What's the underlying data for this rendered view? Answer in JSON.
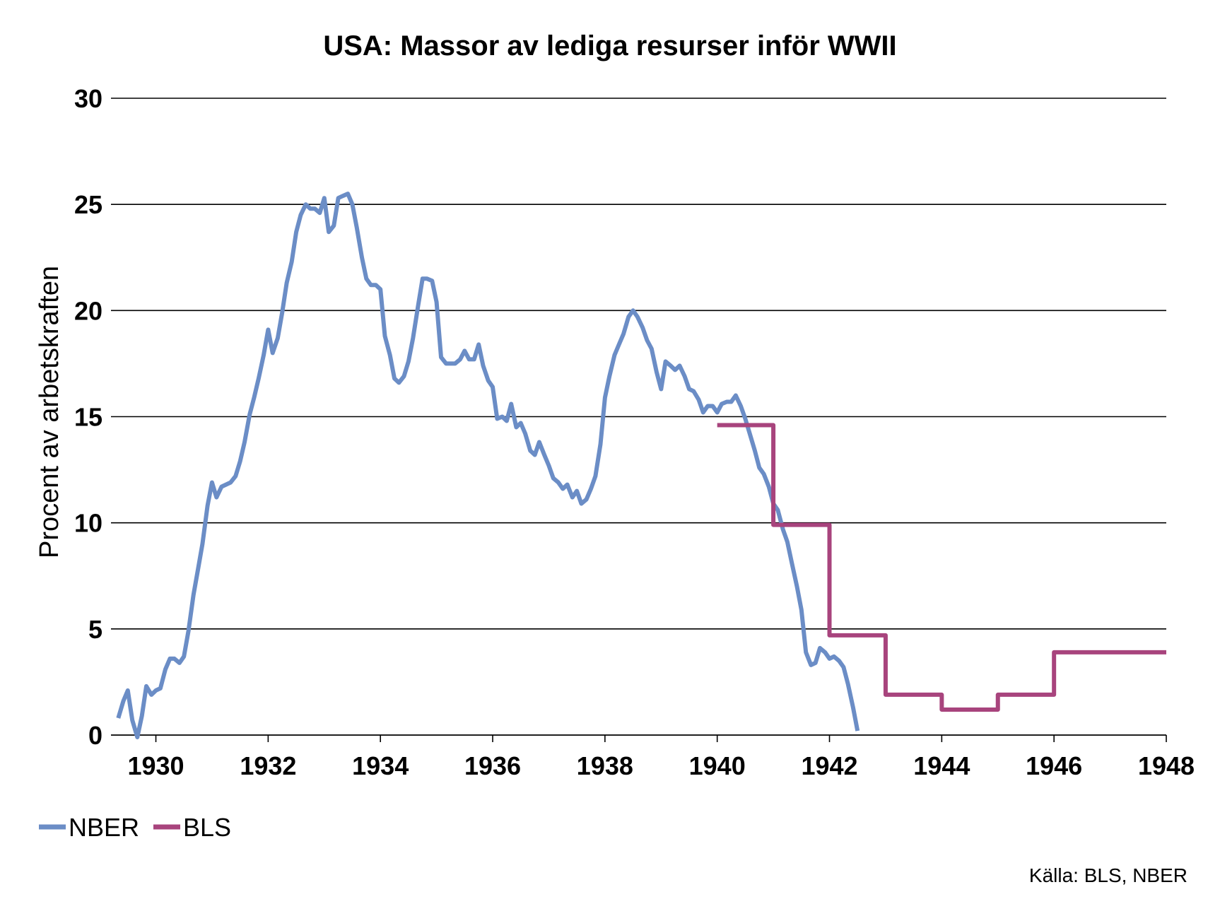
{
  "chart_data": {
    "type": "line",
    "title": "USA: Massor av lediga resurser inför WWII",
    "ylabel": "Procent av arbetskraften",
    "xlabel": "",
    "xlim": [
      1929.2,
      1948
    ],
    "ylim": [
      0,
      30
    ],
    "yticks": [
      "0",
      "5",
      "10",
      "15",
      "20",
      "25",
      "30"
    ],
    "xticks": [
      "1930",
      "1932",
      "1934",
      "1936",
      "1938",
      "1940",
      "1942",
      "1944",
      "1946",
      "1948"
    ],
    "grid": "horizontal",
    "legend_position": "bottom-left",
    "source": "Källa: BLS, NBER",
    "series": [
      {
        "name": "NBER",
        "color": "#6b8dc6",
        "x": [
          1929.33,
          1929.42,
          1929.5,
          1929.58,
          1929.67,
          1929.75,
          1929.83,
          1929.92,
          1930.0,
          1930.08,
          1930.17,
          1930.25,
          1930.33,
          1930.42,
          1930.5,
          1930.58,
          1930.67,
          1930.75,
          1930.83,
          1930.92,
          1931.0,
          1931.08,
          1931.17,
          1931.25,
          1931.33,
          1931.42,
          1931.5,
          1931.58,
          1931.67,
          1931.75,
          1931.83,
          1931.92,
          1932.0,
          1932.08,
          1932.17,
          1932.25,
          1932.33,
          1932.42,
          1932.5,
          1932.58,
          1932.67,
          1932.75,
          1932.83,
          1932.92,
          1933.0,
          1933.08,
          1933.17,
          1933.25,
          1933.33,
          1933.42,
          1933.5,
          1933.58,
          1933.67,
          1933.75,
          1933.83,
          1933.92,
          1934.0,
          1934.08,
          1934.17,
          1934.25,
          1934.33,
          1934.42,
          1934.5,
          1934.58,
          1934.67,
          1934.75,
          1934.83,
          1934.92,
          1935.0,
          1935.08,
          1935.17,
          1935.25,
          1935.33,
          1935.42,
          1935.5,
          1935.58,
          1935.67,
          1935.75,
          1935.83,
          1935.92,
          1936.0,
          1936.08,
          1936.17,
          1936.25,
          1936.33,
          1936.42,
          1936.5,
          1936.58,
          1936.67,
          1936.75,
          1936.83,
          1936.92,
          1937.0,
          1937.08,
          1937.17,
          1937.25,
          1937.33,
          1937.42,
          1937.5,
          1937.58,
          1937.67,
          1937.75,
          1937.83,
          1937.92,
          1938.0,
          1938.08,
          1938.17,
          1938.25,
          1938.33,
          1938.42,
          1938.5,
          1938.58,
          1938.67,
          1938.75,
          1938.83,
          1938.92,
          1939.0,
          1939.08,
          1939.17,
          1939.25,
          1939.33,
          1939.42,
          1939.5,
          1939.58,
          1939.67,
          1939.75,
          1939.83,
          1939.92,
          1940.0,
          1940.08,
          1940.17,
          1940.25,
          1940.33,
          1940.42,
          1940.5,
          1940.58,
          1940.67,
          1940.75,
          1940.83,
          1940.92,
          1941.0,
          1941.08,
          1941.17,
          1941.25,
          1941.33,
          1941.42,
          1941.5,
          1941.58,
          1941.67,
          1941.75,
          1941.83,
          1941.92,
          1942.0,
          1942.08,
          1942.17,
          1942.25,
          1942.33,
          1942.42,
          1942.5
        ],
        "values": [
          0.8,
          1.6,
          2.1,
          0.7,
          -0.1,
          0.9,
          2.3,
          1.9,
          2.1,
          2.2,
          3.1,
          3.6,
          3.6,
          3.4,
          3.7,
          4.9,
          6.6,
          7.8,
          9.0,
          10.8,
          11.9,
          11.2,
          11.7,
          11.8,
          11.9,
          12.2,
          12.9,
          13.8,
          15.1,
          15.9,
          16.8,
          17.9,
          19.1,
          18.0,
          18.7,
          19.9,
          21.3,
          22.3,
          23.7,
          24.5,
          25.0,
          24.8,
          24.8,
          24.6,
          25.3,
          23.7,
          24.0,
          25.3,
          25.4,
          25.5,
          25.0,
          23.9,
          22.5,
          21.5,
          21.2,
          21.2,
          21.0,
          18.8,
          17.9,
          16.8,
          16.6,
          16.9,
          17.6,
          18.7,
          20.2,
          21.5,
          21.5,
          21.4,
          20.4,
          17.8,
          17.5,
          17.5,
          17.5,
          17.7,
          18.1,
          17.7,
          17.7,
          18.4,
          17.4,
          16.7,
          16.4,
          14.9,
          15.0,
          14.8,
          15.6,
          14.5,
          14.7,
          14.2,
          13.4,
          13.2,
          13.8,
          13.2,
          12.7,
          12.1,
          11.9,
          11.6,
          11.8,
          11.2,
          11.5,
          10.9,
          11.1,
          11.6,
          12.2,
          13.7,
          15.9,
          16.9,
          17.9,
          18.4,
          18.9,
          19.7,
          20.0,
          19.7,
          19.2,
          18.6,
          18.2,
          17.1,
          16.3,
          17.6,
          17.4,
          17.2,
          17.4,
          16.9,
          16.3,
          16.2,
          15.8,
          15.2,
          15.5,
          15.5,
          15.2,
          15.6,
          15.7,
          15.7,
          16.0,
          15.5,
          14.9,
          14.2,
          13.4,
          12.6,
          12.3,
          11.7,
          10.9,
          10.6,
          9.7,
          9.1,
          8.1,
          7.0,
          5.9,
          3.9,
          3.3,
          3.4,
          4.1,
          3.9,
          3.6,
          3.7,
          3.5,
          3.2,
          2.4,
          1.3,
          0.2
        ]
      },
      {
        "name": "BLS",
        "color": "#a8447d",
        "step": true,
        "x": [
          1940.0,
          1941.0,
          1942.0,
          1943.0,
          1944.0,
          1945.0,
          1946.0,
          1948.0
        ],
        "values": [
          14.6,
          9.9,
          4.7,
          1.9,
          1.2,
          1.9,
          3.9,
          3.9
        ]
      }
    ]
  }
}
